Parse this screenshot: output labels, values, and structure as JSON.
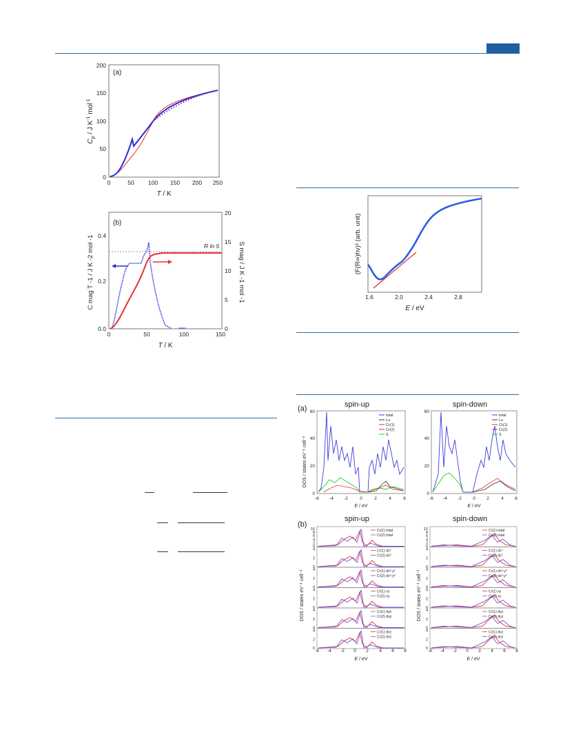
{
  "page": {
    "header_bar_color": "#1f5f9f",
    "rule_color": "#2d6aa9"
  },
  "fig_cp": {
    "panel_label": "(a)",
    "ylabel_html": "C p / J K-1 mol-1",
    "ylabel_main": "C",
    "ylabel_sub": "p",
    "ylabel_rest": " / J K",
    "ylabel_sup": "-1",
    "ylabel_end": " mol",
    "ylabel_sup2": "-1",
    "xlabel_main": "T",
    "xlabel_rest": " / K",
    "xticks": [
      "0",
      "50",
      "100",
      "150",
      "200",
      "250"
    ],
    "yticks": [
      "0",
      "50",
      "100",
      "150",
      "200"
    ]
  },
  "fig_cmag": {
    "panel_label": "(b)",
    "annotation": "R ln 5",
    "ylabel_left": "C mag T -1 / J K -2 mol -1",
    "ylabel_right": "S mag / J K -1 mol -1",
    "xlabel_main": "T",
    "xlabel_rest": " / K",
    "xticks": [
      "0",
      "50",
      "100",
      "150"
    ],
    "yticks_left": [
      "0.0",
      "0.2",
      "0.4"
    ],
    "yticks_right": [
      "0",
      "5",
      "10",
      "15",
      "20"
    ]
  },
  "fig_uv": {
    "ylabel": "(F(R∞)hν)² (arb. unit)",
    "xlabel_main": "E",
    "xlabel_rest": " / eV",
    "xticks": [
      "1.6",
      "2.0",
      "2.4",
      "2.8"
    ]
  },
  "fig_dos_total": {
    "panel_label": "(a)",
    "title_up": "spin-up",
    "title_down": "spin-down",
    "ylabel": "DOS / states eV⁻¹ cell⁻¹",
    "xlabel_main": "E",
    "xlabel_rest": " / eV",
    "xticks": [
      "-6",
      "-4",
      "-2",
      "0",
      "2",
      "4",
      "6"
    ],
    "yticks": [
      "0",
      "20",
      "40",
      "60"
    ],
    "legend": [
      "total",
      "Lu",
      "Cr(1)",
      "Cr(2)",
      "S"
    ],
    "legend_colors": [
      "#3b3bdc",
      "#333333",
      "#e83030",
      "#b02ab0",
      "#22cc22"
    ]
  },
  "fig_dos_orb": {
    "panel_label": "(b)",
    "title_up": "spin-up",
    "title_down": "spin-down",
    "ylabel": "DOS / states eV⁻¹ cell⁻¹",
    "xlabel_main": "E",
    "xlabel_rest": " / eV",
    "xticks": [
      "-6",
      "-4",
      "-2",
      "0",
      "2",
      "4",
      "6",
      "8"
    ],
    "rows": [
      {
        "a": "Cr(1) total",
        "b": "Cr(2) total",
        "yticks": [
          "0",
          "2",
          "4",
          "6",
          "8",
          "10"
        ]
      },
      {
        "a": "Cr(1) dz²",
        "b": "Cr(2) dz²",
        "yticks": [
          "0",
          "2",
          "4"
        ]
      },
      {
        "a": "Cr(1) dx²-y²",
        "b": "Cr(2) dx²-y²",
        "yticks": [
          "0",
          "2",
          "4"
        ]
      },
      {
        "a": "Cr(1) xy",
        "b": "Cr(2) xy",
        "yticks": [
          "0",
          "2",
          "4"
        ]
      },
      {
        "a": "Cr(1) dyz",
        "b": "Cr(2) dyz",
        "yticks": [
          "0",
          "2",
          "4"
        ]
      },
      {
        "a": "Cr(1) dxz",
        "b": "Cr(2) dxz",
        "yticks": [
          "0",
          "2",
          "4"
        ]
      }
    ],
    "color_a": "#e83030",
    "color_b": "#6a4ee8"
  }
}
